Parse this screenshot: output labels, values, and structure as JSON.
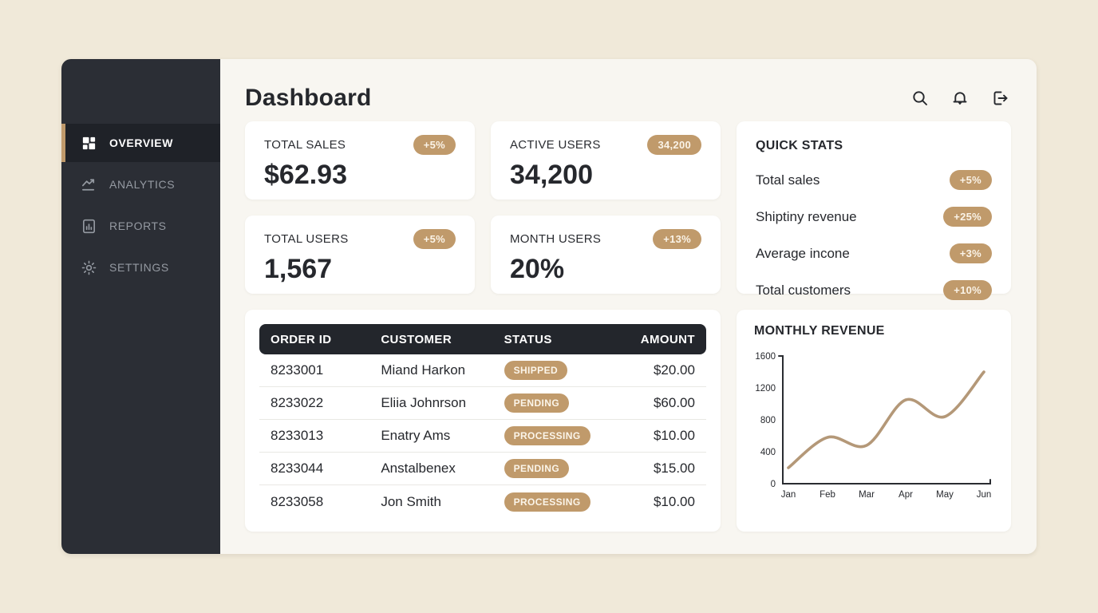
{
  "colors": {
    "page_bg": "#f0e9d9",
    "main_bg": "#f8f6f1",
    "sidebar_bg": "#2b2e35",
    "sidebar_active_bg": "#1f2228",
    "accent": "#c09a6b",
    "table_header_bg": "#23262c",
    "text_dark": "#26282d",
    "text_muted": "#959aa2",
    "chart_line": "#b49878"
  },
  "header": {
    "title": "Dashboard",
    "icons": [
      {
        "name": "search-icon"
      },
      {
        "name": "bell-icon"
      },
      {
        "name": "logout-icon"
      }
    ]
  },
  "sidebar": {
    "items": [
      {
        "label": "OVERVIEW",
        "icon": "grid-icon",
        "active": true
      },
      {
        "label": "ANALYTICS",
        "icon": "trend-icon",
        "active": false
      },
      {
        "label": "REPORTS",
        "icon": "report-icon",
        "active": false
      },
      {
        "label": "SETTINGS",
        "icon": "gear-icon",
        "active": false
      }
    ]
  },
  "stat_cards": [
    {
      "label": "TOTAL SALES",
      "badge": "+5%",
      "value": "$62.93"
    },
    {
      "label": "ACTIVE USERS",
      "badge": "34,200",
      "value": "34,200"
    },
    {
      "label": "TOTAL USERS",
      "badge": "+5%",
      "value": "1,567"
    },
    {
      "label": "MONTH USERS",
      "badge": "+13%",
      "value": "20%"
    }
  ],
  "quick_stats": {
    "title": "QUICK STATS",
    "rows": [
      {
        "label": "Total sales",
        "badge": "+5%"
      },
      {
        "label": "Shiptiny revenue",
        "badge": "+25%"
      },
      {
        "label": "Average incone",
        "badge": "+3%"
      },
      {
        "label": "Total customers",
        "badge": "+10%"
      }
    ]
  },
  "orders_table": {
    "columns": [
      "ORDER ID",
      "CUSTOMER",
      "STATUS",
      "AMOUNT"
    ],
    "rows": [
      {
        "order_id": "8233001",
        "customer": "Miand Harkon",
        "status": "SHIPPED",
        "amount": "$20.00"
      },
      {
        "order_id": "8233022",
        "customer": "Eliia Johnrson",
        "status": "PENDING",
        "amount": "$60.00"
      },
      {
        "order_id": "8233013",
        "customer": "Enatry Ams",
        "status": "PROCESSING",
        "amount": "$10.00"
      },
      {
        "order_id": "8233044",
        "customer": "Anstalbenex",
        "status": "PENDING",
        "amount": "$15.00"
      },
      {
        "order_id": "8233058",
        "customer": "Jon Smith",
        "status": "PROCESSING",
        "amount": "$10.00"
      }
    ]
  },
  "chart_data": {
    "type": "line",
    "title": "MONTHLY REVENUE",
    "x": [
      "Jan",
      "Feb",
      "Mar",
      "Apr",
      "May",
      "Jun"
    ],
    "values": [
      200,
      580,
      480,
      1050,
      840,
      1400
    ],
    "xlabel": "",
    "ylabel": "",
    "ylim": [
      0,
      1600
    ],
    "yticks": [
      0,
      400,
      800,
      1200,
      1600
    ],
    "grid": false,
    "legend": false,
    "line_color": "#b49878"
  }
}
